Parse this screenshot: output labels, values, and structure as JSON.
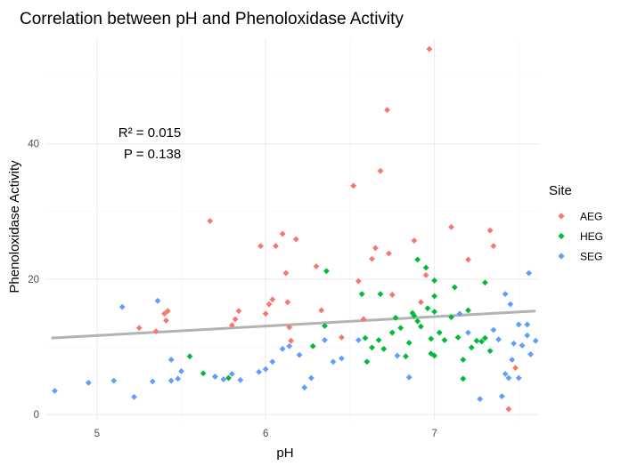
{
  "chart_data": {
    "type": "scatter",
    "title": "Correlation between pH and Phenoloxidase Activity",
    "xlabel": "pH",
    "ylabel": "Phenoloxidase Activity",
    "xlim": [
      4.7,
      7.62
    ],
    "ylim": [
      -0.9,
      55.6
    ],
    "x_ticks": [
      5,
      6,
      7
    ],
    "y_ticks": [
      0,
      20,
      40
    ],
    "x_tick_labels": [
      "5",
      "6",
      "7"
    ],
    "y_tick_labels": [
      "0",
      "20",
      "40"
    ],
    "grid": true,
    "legend": {
      "title": "Site",
      "position": "right"
    },
    "annotations": {
      "r2": "R² = 0.015",
      "p": "P = 0.138"
    },
    "trend_line": {
      "x": [
        4.73,
        7.6
      ],
      "y": [
        11.3,
        15.3
      ],
      "color": "#b3b3b3"
    },
    "series": [
      {
        "name": "AEG",
        "color": "#f8766d",
        "points": [
          [
            5.25,
            12.8
          ],
          [
            5.35,
            12.3
          ],
          [
            5.4,
            14.9
          ],
          [
            5.42,
            15.3
          ],
          [
            5.41,
            13.9
          ],
          [
            5.67,
            28.6
          ],
          [
            5.8,
            13.2
          ],
          [
            5.82,
            14.1
          ],
          [
            5.84,
            15.3
          ],
          [
            5.97,
            24.9
          ],
          [
            6.0,
            14.9
          ],
          [
            6.02,
            16.3
          ],
          [
            6.04,
            17.0
          ],
          [
            6.06,
            24.9
          ],
          [
            6.1,
            26.7
          ],
          [
            6.12,
            20.9
          ],
          [
            6.13,
            16.6
          ],
          [
            6.14,
            12.9
          ],
          [
            6.15,
            10.9
          ],
          [
            6.18,
            25.9
          ],
          [
            6.3,
            21.9
          ],
          [
            6.33,
            15.4
          ],
          [
            6.45,
            11.4
          ],
          [
            6.52,
            33.8
          ],
          [
            6.55,
            19.7
          ],
          [
            6.58,
            14.1
          ],
          [
            6.63,
            23.0
          ],
          [
            6.65,
            24.6
          ],
          [
            6.68,
            36.0
          ],
          [
            6.72,
            45.0
          ],
          [
            6.73,
            23.8
          ],
          [
            6.75,
            17.7
          ],
          [
            6.88,
            25.7
          ],
          [
            6.92,
            16.6
          ],
          [
            6.95,
            20.6
          ],
          [
            6.97,
            54.0
          ],
          [
            7.1,
            27.7
          ],
          [
            7.2,
            22.9
          ],
          [
            7.33,
            27.2
          ],
          [
            7.35,
            24.9
          ],
          [
            7.48,
            6.9
          ],
          [
            7.44,
            0.8
          ]
        ]
      },
      {
        "name": "HEG",
        "color": "#00ba38",
        "points": [
          [
            5.55,
            8.6
          ],
          [
            5.63,
            6.1
          ],
          [
            5.7,
            5.6
          ],
          [
            5.78,
            5.4
          ],
          [
            6.28,
            10.1
          ],
          [
            6.35,
            13.1
          ],
          [
            6.36,
            21.2
          ],
          [
            6.57,
            17.8
          ],
          [
            6.59,
            11.3
          ],
          [
            6.6,
            7.8
          ],
          [
            6.63,
            9.9
          ],
          [
            6.67,
            11.0
          ],
          [
            6.68,
            17.8
          ],
          [
            6.7,
            9.7
          ],
          [
            6.75,
            12.1
          ],
          [
            6.77,
            14.3
          ],
          [
            6.8,
            12.8
          ],
          [
            6.83,
            8.6
          ],
          [
            6.85,
            10.6
          ],
          [
            6.87,
            15.0
          ],
          [
            6.88,
            14.6
          ],
          [
            6.9,
            13.8
          ],
          [
            6.9,
            22.9
          ],
          [
            6.92,
            13.0
          ],
          [
            6.95,
            21.7
          ],
          [
            6.96,
            15.7
          ],
          [
            6.98,
            9.0
          ],
          [
            6.98,
            11.2
          ],
          [
            7.0,
            15.2
          ],
          [
            7.0,
            19.8
          ],
          [
            7.0,
            17.5
          ],
          [
            7.0,
            8.7
          ],
          [
            7.03,
            12.1
          ],
          [
            7.06,
            11.0
          ],
          [
            7.1,
            14.4
          ],
          [
            7.12,
            18.8
          ],
          [
            7.14,
            11.4
          ],
          [
            7.17,
            8.1
          ],
          [
            7.17,
            5.3
          ],
          [
            7.2,
            15.4
          ],
          [
            7.22,
            9.9
          ],
          [
            7.25,
            10.9
          ],
          [
            7.28,
            10.8
          ],
          [
            7.3,
            19.5
          ],
          [
            7.3,
            11.3
          ],
          [
            7.33,
            9.4
          ]
        ]
      },
      {
        "name": "SEG",
        "color": "#619cff",
        "points": [
          [
            4.75,
            3.5
          ],
          [
            4.95,
            4.7
          ],
          [
            5.1,
            5.0
          ],
          [
            5.15,
            15.9
          ],
          [
            5.22,
            2.6
          ],
          [
            5.33,
            4.9
          ],
          [
            5.36,
            16.8
          ],
          [
            5.44,
            8.1
          ],
          [
            5.44,
            5.0
          ],
          [
            5.5,
            6.4
          ],
          [
            5.48,
            5.3
          ],
          [
            5.7,
            5.6
          ],
          [
            5.75,
            5.2
          ],
          [
            5.8,
            6.0
          ],
          [
            5.85,
            5.1
          ],
          [
            5.96,
            6.3
          ],
          [
            6.0,
            6.7
          ],
          [
            6.04,
            7.8
          ],
          [
            6.1,
            9.7
          ],
          [
            6.14,
            10.1
          ],
          [
            6.2,
            8.8
          ],
          [
            6.23,
            4.0
          ],
          [
            6.27,
            5.4
          ],
          [
            6.35,
            11.0
          ],
          [
            6.4,
            7.8
          ],
          [
            6.45,
            8.3
          ],
          [
            6.55,
            11.0
          ],
          [
            6.78,
            8.7
          ],
          [
            6.85,
            5.5
          ],
          [
            7.15,
            14.9
          ],
          [
            7.2,
            12.1
          ],
          [
            7.27,
            2.3
          ],
          [
            7.35,
            12.5
          ],
          [
            7.38,
            11.1
          ],
          [
            7.4,
            2.7
          ],
          [
            7.42,
            6.0
          ],
          [
            7.44,
            5.4
          ],
          [
            7.46,
            8.1
          ],
          [
            7.47,
            10.5
          ],
          [
            7.5,
            13.3
          ],
          [
            7.52,
            10.2
          ],
          [
            7.55,
            11.7
          ],
          [
            7.55,
            13.3
          ],
          [
            7.57,
            8.9
          ],
          [
            7.6,
            10.9
          ],
          [
            7.56,
            20.9
          ],
          [
            7.45,
            16.3
          ],
          [
            7.42,
            17.8
          ],
          [
            7.5,
            5.4
          ]
        ]
      }
    ]
  }
}
